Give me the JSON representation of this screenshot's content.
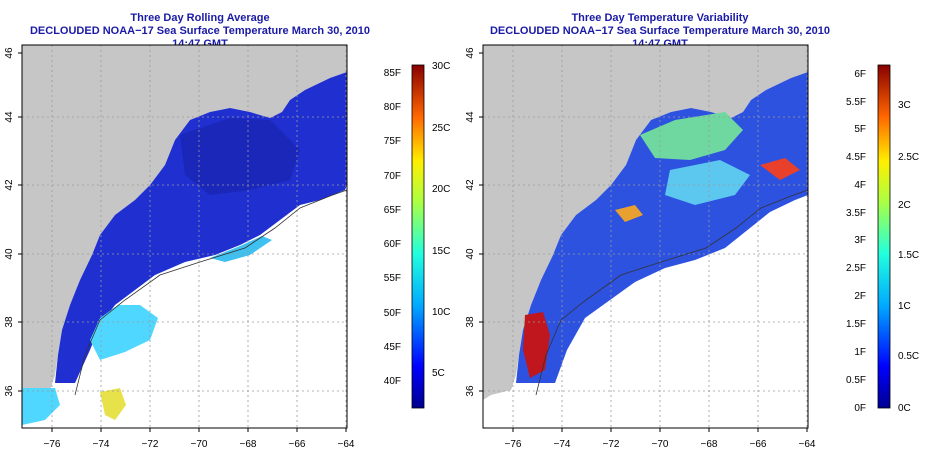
{
  "left_panel": {
    "title": "Three Day Rolling Average",
    "subtitle": "DECLOUDED NOAA−17 Sea Surface Temperature March 30, 2010 14:47 GMT",
    "lat_ticks": [
      "46",
      "44",
      "42",
      "40",
      "38",
      "36"
    ],
    "lon_ticks": [
      "−76",
      "−74",
      "−72",
      "−70",
      "−68",
      "−66",
      "−64"
    ],
    "colorbar": {
      "f_labels": [
        "85F",
        "80F",
        "75F",
        "70F",
        "65F",
        "60F",
        "55F",
        "50F",
        "45F",
        "40F"
      ],
      "c_labels": [
        "30C",
        "25C",
        "20C",
        "15C",
        "10C",
        "5C"
      ]
    }
  },
  "right_panel": {
    "title": "Three Day Temperature Variability",
    "subtitle": "DECLOUDED NOAA−17 Sea Surface Temperature March 30, 2010 14:47 GMT",
    "lat_ticks": [
      "46",
      "44",
      "42",
      "40",
      "38",
      "36"
    ],
    "lon_ticks": [
      "−76",
      "−74",
      "−72",
      "−70",
      "−68",
      "−66",
      "−64"
    ],
    "colorbar": {
      "f_labels": [
        "6F",
        "5.5F",
        "5F",
        "4.5F",
        "4F",
        "3.5F",
        "3F",
        "2.5F",
        "2F",
        "1.5F",
        "1F",
        "0.5F",
        "0F"
      ],
      "c_labels": [
        "3C",
        "2.5C",
        "2C",
        "1.5C",
        "1C",
        "0.5C",
        "0C"
      ]
    }
  },
  "colors": {
    "title": "#1a1aa6",
    "land": "#c6c6c6",
    "ocean_blue": "#1f2fd0",
    "grid": "#9a9a9a"
  }
}
